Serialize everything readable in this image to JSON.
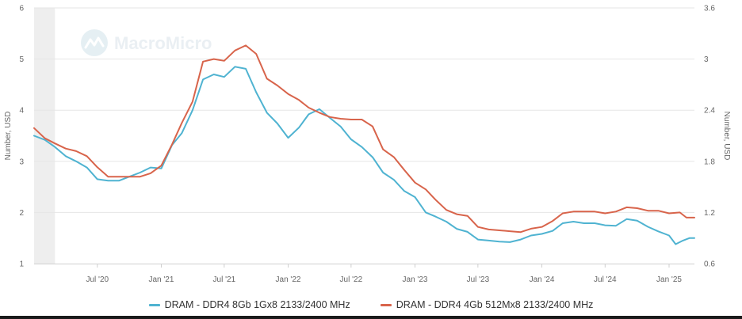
{
  "watermark": {
    "brand": "MacroMicro",
    "logo_icon": "macromicro-logo-icon"
  },
  "chart_data": {
    "type": "line",
    "x_tick_labels": [
      "Jul '20",
      "Jan '21",
      "Jul '21",
      "Jan '22",
      "Jul '22",
      "Jan '23",
      "Jul '23",
      "Jan '24",
      "Jul '24",
      "Jan '25"
    ],
    "left_axis": {
      "label": "Number, USD",
      "ticks": [
        "1",
        "2",
        "3",
        "4",
        "5",
        "6"
      ],
      "ylim": [
        1,
        6
      ]
    },
    "right_axis": {
      "label": "Number, USD",
      "ticks": [
        "0.6",
        "1.2",
        "1.8",
        "2.4",
        "3",
        "3.6"
      ],
      "ylim": [
        0.6,
        3.6
      ]
    },
    "x_range": [
      "2020-01-01",
      "2025-03-15"
    ],
    "shaded_region": [
      "2020-01-01",
      "2020-03-01"
    ],
    "grid": true,
    "legend_position": "bottom",
    "series": [
      {
        "name": "DRAM - DDR4 8Gb 1Gx8 2133/2400 MHz",
        "axis": "left",
        "color": "#4fb3d1",
        "points": [
          [
            "2020-01-01",
            3.5
          ],
          [
            "2020-02-01",
            3.42
          ],
          [
            "2020-03-01",
            3.28
          ],
          [
            "2020-04-01",
            3.1
          ],
          [
            "2020-05-01",
            3.0
          ],
          [
            "2020-06-01",
            2.88
          ],
          [
            "2020-07-01",
            2.65
          ],
          [
            "2020-08-01",
            2.62
          ],
          [
            "2020-09-01",
            2.62
          ],
          [
            "2020-10-01",
            2.7
          ],
          [
            "2020-11-01",
            2.78
          ],
          [
            "2020-12-01",
            2.88
          ],
          [
            "2021-01-01",
            2.86
          ],
          [
            "2021-02-01",
            3.32
          ],
          [
            "2021-03-01",
            3.55
          ],
          [
            "2021-04-01",
            4.0
          ],
          [
            "2021-05-01",
            4.6
          ],
          [
            "2021-06-01",
            4.7
          ],
          [
            "2021-07-01",
            4.65
          ],
          [
            "2021-08-01",
            4.85
          ],
          [
            "2021-09-01",
            4.81
          ],
          [
            "2021-10-01",
            4.35
          ],
          [
            "2021-11-01",
            3.95
          ],
          [
            "2021-12-01",
            3.74
          ],
          [
            "2022-01-01",
            3.46
          ],
          [
            "2022-02-01",
            3.66
          ],
          [
            "2022-03-01",
            3.92
          ],
          [
            "2022-04-01",
            4.02
          ],
          [
            "2022-05-01",
            3.85
          ],
          [
            "2022-06-01",
            3.68
          ],
          [
            "2022-07-01",
            3.43
          ],
          [
            "2022-08-01",
            3.28
          ],
          [
            "2022-09-01",
            3.08
          ],
          [
            "2022-10-01",
            2.78
          ],
          [
            "2022-11-01",
            2.64
          ],
          [
            "2022-12-01",
            2.42
          ],
          [
            "2023-01-01",
            2.3
          ],
          [
            "2023-02-01",
            2.0
          ],
          [
            "2023-03-01",
            1.92
          ],
          [
            "2023-04-01",
            1.82
          ],
          [
            "2023-05-01",
            1.68
          ],
          [
            "2023-06-01",
            1.62
          ],
          [
            "2023-07-01",
            1.47
          ],
          [
            "2023-08-01",
            1.45
          ],
          [
            "2023-09-01",
            1.43
          ],
          [
            "2023-10-01",
            1.42
          ],
          [
            "2023-11-01",
            1.47
          ],
          [
            "2023-12-01",
            1.55
          ],
          [
            "2024-01-01",
            1.58
          ],
          [
            "2024-02-01",
            1.64
          ],
          [
            "2024-03-01",
            1.79
          ],
          [
            "2024-04-01",
            1.82
          ],
          [
            "2024-05-01",
            1.79
          ],
          [
            "2024-06-01",
            1.79
          ],
          [
            "2024-07-01",
            1.75
          ],
          [
            "2024-08-01",
            1.74
          ],
          [
            "2024-09-01",
            1.87
          ],
          [
            "2024-10-01",
            1.84
          ],
          [
            "2024-11-01",
            1.72
          ],
          [
            "2024-12-01",
            1.63
          ],
          [
            "2025-01-01",
            1.55
          ],
          [
            "2025-01-20",
            1.38
          ],
          [
            "2025-02-10",
            1.45
          ],
          [
            "2025-03-01",
            1.5
          ],
          [
            "2025-03-15",
            1.5
          ]
        ]
      },
      {
        "name": "DRAM - DDR4 4Gb 512Mx8 2133/2400 MHz",
        "axis": "right",
        "color": "#d8644b",
        "points": [
          [
            "2020-01-01",
            2.19
          ],
          [
            "2020-02-01",
            2.07
          ],
          [
            "2020-03-01",
            2.01
          ],
          [
            "2020-04-01",
            1.95
          ],
          [
            "2020-05-01",
            1.92
          ],
          [
            "2020-06-01",
            1.86
          ],
          [
            "2020-07-01",
            1.73
          ],
          [
            "2020-08-01",
            1.62
          ],
          [
            "2020-09-01",
            1.62
          ],
          [
            "2020-10-01",
            1.62
          ],
          [
            "2020-11-01",
            1.62
          ],
          [
            "2020-12-01",
            1.66
          ],
          [
            "2021-01-01",
            1.75
          ],
          [
            "2021-02-01",
            2.0
          ],
          [
            "2021-03-01",
            2.25
          ],
          [
            "2021-04-01",
            2.5
          ],
          [
            "2021-05-01",
            2.97
          ],
          [
            "2021-06-01",
            3.0
          ],
          [
            "2021-07-01",
            2.98
          ],
          [
            "2021-08-01",
            3.1
          ],
          [
            "2021-09-01",
            3.16
          ],
          [
            "2021-10-01",
            3.06
          ],
          [
            "2021-11-01",
            2.77
          ],
          [
            "2021-12-01",
            2.69
          ],
          [
            "2022-01-01",
            2.59
          ],
          [
            "2022-02-01",
            2.52
          ],
          [
            "2022-03-01",
            2.43
          ],
          [
            "2022-04-01",
            2.37
          ],
          [
            "2022-05-01",
            2.32
          ],
          [
            "2022-06-01",
            2.3
          ],
          [
            "2022-07-01",
            2.29
          ],
          [
            "2022-08-01",
            2.29
          ],
          [
            "2022-09-01",
            2.21
          ],
          [
            "2022-10-01",
            1.94
          ],
          [
            "2022-11-01",
            1.85
          ],
          [
            "2022-12-01",
            1.7
          ],
          [
            "2023-01-01",
            1.55
          ],
          [
            "2023-02-01",
            1.47
          ],
          [
            "2023-03-01",
            1.35
          ],
          [
            "2023-04-01",
            1.23
          ],
          [
            "2023-05-01",
            1.18
          ],
          [
            "2023-06-01",
            1.16
          ],
          [
            "2023-07-01",
            1.03
          ],
          [
            "2023-08-01",
            1.0
          ],
          [
            "2023-09-01",
            0.99
          ],
          [
            "2023-10-01",
            0.98
          ],
          [
            "2023-11-01",
            0.97
          ],
          [
            "2023-12-01",
            1.01
          ],
          [
            "2024-01-01",
            1.03
          ],
          [
            "2024-02-01",
            1.1
          ],
          [
            "2024-03-01",
            1.19
          ],
          [
            "2024-04-01",
            1.21
          ],
          [
            "2024-05-01",
            1.21
          ],
          [
            "2024-06-01",
            1.21
          ],
          [
            "2024-07-01",
            1.19
          ],
          [
            "2024-08-01",
            1.21
          ],
          [
            "2024-09-01",
            1.26
          ],
          [
            "2024-10-01",
            1.25
          ],
          [
            "2024-11-01",
            1.22
          ],
          [
            "2024-12-01",
            1.22
          ],
          [
            "2025-01-01",
            1.19
          ],
          [
            "2025-02-01",
            1.2
          ],
          [
            "2025-02-20",
            1.14
          ],
          [
            "2025-03-15",
            1.14
          ]
        ]
      }
    ]
  }
}
